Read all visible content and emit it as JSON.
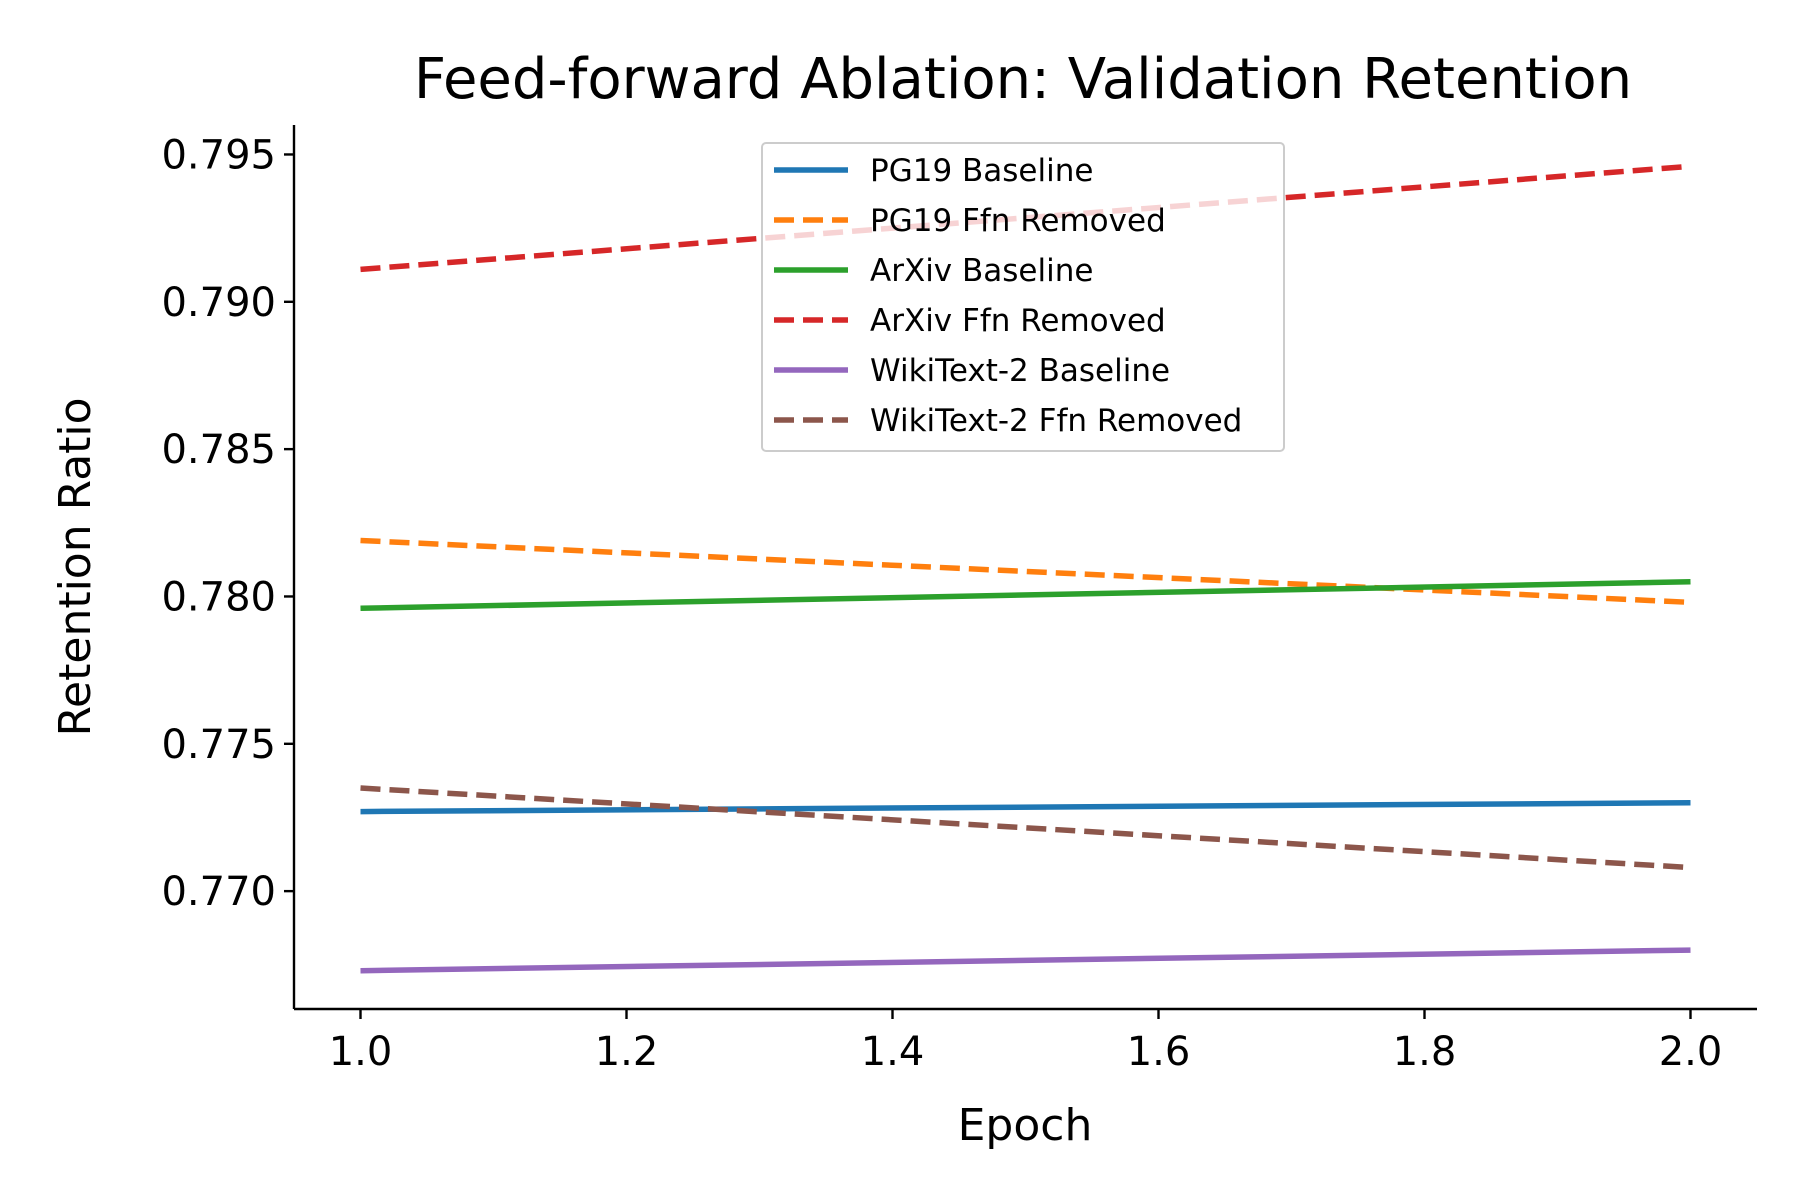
{
  "chart_data": {
    "type": "line",
    "title": "Feed-forward Ablation: Validation Retention",
    "xlabel": "Epoch",
    "ylabel": "Retention Ratio",
    "xlim": [
      0.95,
      2.05
    ],
    "ylim": [
      0.766,
      0.796
    ],
    "xticks": [
      1.0,
      1.2,
      1.4,
      1.6,
      1.8,
      2.0
    ],
    "xtick_labels": [
      "1.0",
      "1.2",
      "1.4",
      "1.6",
      "1.8",
      "2.0"
    ],
    "yticks": [
      0.77,
      0.775,
      0.78,
      0.785,
      0.79,
      0.795
    ],
    "ytick_labels": [
      "0.770",
      "0.775",
      "0.780",
      "0.785",
      "0.790",
      "0.795"
    ],
    "grid": false,
    "legend_position": "top-center",
    "series": [
      {
        "name": "PG19 Baseline",
        "x": [
          1.0,
          2.0
        ],
        "y": [
          0.7727,
          0.773
        ],
        "color": "#1f77b4",
        "style": "solid"
      },
      {
        "name": "PG19 Ffn Removed",
        "x": [
          1.0,
          2.0
        ],
        "y": [
          0.7819,
          0.7798
        ],
        "color": "#ff7f0e",
        "style": "dashed"
      },
      {
        "name": "ArXiv Baseline",
        "x": [
          1.0,
          2.0
        ],
        "y": [
          0.7796,
          0.7805
        ],
        "color": "#2ca02c",
        "style": "solid"
      },
      {
        "name": "ArXiv Ffn Removed",
        "x": [
          1.0,
          2.0
        ],
        "y": [
          0.7911,
          0.7946
        ],
        "color": "#d62728",
        "style": "dashed"
      },
      {
        "name": "WikiText-2 Baseline",
        "x": [
          1.0,
          2.0
        ],
        "y": [
          0.7673,
          0.768
        ],
        "color": "#9467bd",
        "style": "solid"
      },
      {
        "name": "WikiText-2 Ffn Removed",
        "x": [
          1.0,
          2.0
        ],
        "y": [
          0.7735,
          0.7708
        ],
        "color": "#8c564b",
        "style": "dashed"
      }
    ]
  }
}
